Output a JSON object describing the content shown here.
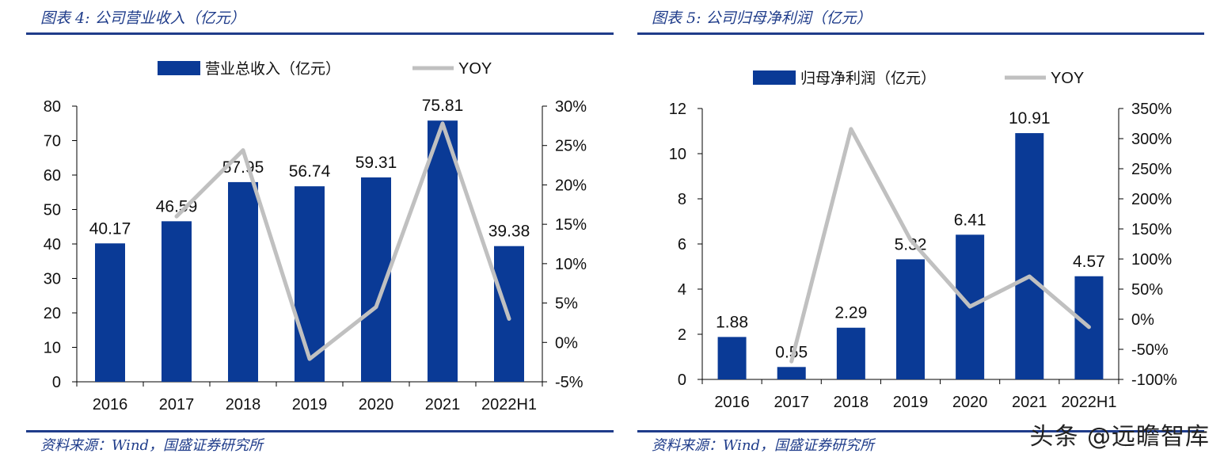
{
  "colors": {
    "bar": "#0a3a96",
    "line": "#c0c0c0",
    "accent": "#1f3c8a",
    "text": "#111111"
  },
  "watermark": "头条 @远瞻智库",
  "panels": [
    {
      "title": "图表 4:  公司营业收入（亿元）",
      "source": "资料来源：Wind，国盛证券研究所",
      "chart_data": {
        "type": "bar",
        "categories": [
          "2016",
          "2017",
          "2018",
          "2019",
          "2020",
          "2021",
          "2022H1"
        ],
        "series": [
          {
            "name": "营业总收入（亿元）",
            "type": "bar",
            "axis": "left",
            "values": [
              40.17,
              46.59,
              57.95,
              56.74,
              59.31,
              75.81,
              39.38
            ]
          },
          {
            "name": "YOY",
            "type": "line",
            "axis": "right",
            "values": [
              null,
              16.0,
              24.4,
              -2.1,
              4.5,
              27.8,
              3.0
            ]
          }
        ],
        "data_labels": [
          "40.17",
          "46.59",
          "57.95",
          "56.74",
          "59.31",
          "75.81",
          "39.38"
        ],
        "ylim_left": [
          0,
          80
        ],
        "yticks_left": [
          "0",
          "10",
          "20",
          "30",
          "40",
          "50",
          "60",
          "70",
          "80"
        ],
        "ylim_right": [
          -5,
          30
        ],
        "yticks_right": [
          "-5%",
          "0%",
          "5%",
          "10%",
          "15%",
          "20%",
          "25%",
          "30%"
        ],
        "legend": "top",
        "grid": false
      }
    },
    {
      "title": "图表 5:  公司归母净利润（亿元）",
      "source": "资料来源：Wind，国盛证券研究所",
      "chart_data": {
        "type": "bar",
        "categories": [
          "2016",
          "2017",
          "2018",
          "2019",
          "2020",
          "2021",
          "2022H1"
        ],
        "series": [
          {
            "name": "归母净利润（亿元）",
            "type": "bar",
            "axis": "left",
            "values": [
              1.88,
              0.55,
              2.29,
              5.32,
              6.41,
              10.91,
              4.57
            ]
          },
          {
            "name": "YOY",
            "type": "line",
            "axis": "right",
            "values": [
              null,
              -70.0,
              316.0,
              132.0,
              21.0,
              71.0,
              -13.0
            ]
          }
        ],
        "data_labels": [
          "1.88",
          "0.55",
          "2.29",
          "5.32",
          "6.41",
          "10.91",
          "4.57"
        ],
        "ylim_left": [
          0,
          12
        ],
        "yticks_left": [
          "0",
          "2",
          "4",
          "6",
          "8",
          "10",
          "12"
        ],
        "ylim_right": [
          -100,
          350
        ],
        "yticks_right": [
          "-100%",
          "-50%",
          "0%",
          "50%",
          "100%",
          "150%",
          "200%",
          "250%",
          "300%",
          "350%"
        ],
        "legend": "top",
        "grid": false
      }
    }
  ]
}
